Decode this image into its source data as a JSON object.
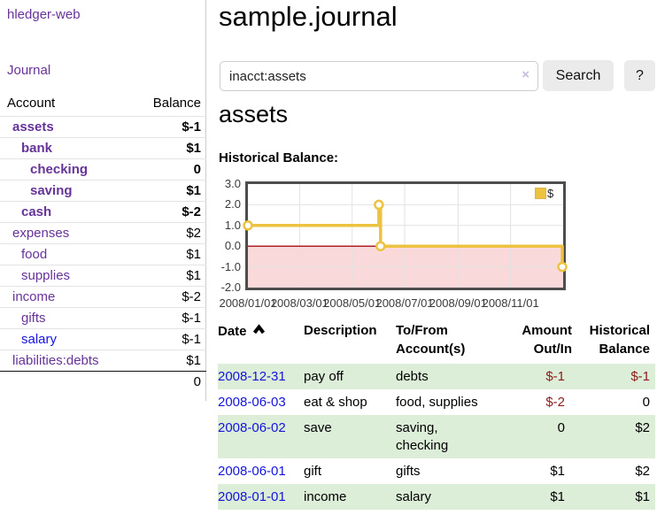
{
  "colors": {
    "purple": "#663399",
    "blue": "#1414dd",
    "darkred": "#8e1a1a",
    "rose": "#c98c8c",
    "green": "#dcedd8",
    "gold": "#edc240",
    "lavender": "#c7bcdc"
  },
  "sidebar": {
    "brand": "hledger-web",
    "journal_link": "Journal",
    "headers": {
      "account": "Account",
      "balance": "Balance"
    },
    "rows": [
      {
        "name": "assets",
        "depth": 1,
        "bold": true,
        "link": "purple",
        "balance": "$-1",
        "bal_class": "neg"
      },
      {
        "name": "bank",
        "depth": 2,
        "bold": true,
        "link": "purple",
        "balance": "$1",
        "bal_class": ""
      },
      {
        "name": "checking",
        "depth": 3,
        "bold": true,
        "link": "purple",
        "balance": "0",
        "bal_class": ""
      },
      {
        "name": "saving",
        "depth": 3,
        "bold": true,
        "link": "purple",
        "balance": "$1",
        "bal_class": ""
      },
      {
        "name": "cash",
        "depth": 2,
        "bold": true,
        "link": "purple",
        "balance": "$-2",
        "bal_class": "neg"
      },
      {
        "name": "expenses",
        "depth": 1,
        "bold": false,
        "link": "purple",
        "balance": "$2",
        "bal_class": ""
      },
      {
        "name": "food",
        "depth": 2,
        "bold": false,
        "link": "purple",
        "balance": "$1",
        "bal_class": ""
      },
      {
        "name": "supplies",
        "depth": 2,
        "bold": false,
        "link": "purple",
        "balance": "$1",
        "bal_class": ""
      },
      {
        "name": "income",
        "depth": 1,
        "bold": false,
        "link": "purple",
        "balance": "$-2",
        "bal_class": "soft"
      },
      {
        "name": "gifts",
        "depth": 2,
        "bold": false,
        "link": "purple",
        "balance": "$-1",
        "bal_class": "soft"
      },
      {
        "name": "salary",
        "depth": 2,
        "bold": false,
        "link": "blue",
        "balance": "$-1",
        "bal_class": "soft"
      },
      {
        "name": "liabilities:debts",
        "depth": 1,
        "bold": false,
        "link": "purple",
        "balance": "$1",
        "bal_class": ""
      }
    ],
    "total": "0"
  },
  "header": {
    "title": "sample.journal"
  },
  "search": {
    "value": "inacct:assets",
    "clear_icon": "×",
    "button_label": "Search",
    "help_label": "?"
  },
  "account_page": {
    "title": "assets",
    "chart_label": "Historical Balance:"
  },
  "chart_data": {
    "type": "line",
    "step": true,
    "title": "Historical Balance:",
    "legend": "$",
    "legend_position": "top-right",
    "grid": true,
    "ylim": [
      -2,
      3
    ],
    "x_range": [
      "2008-01-01",
      "2009-01-01"
    ],
    "series": [
      {
        "name": "$",
        "color": "#edc240",
        "points": [
          [
            "2008-01-01",
            1
          ],
          [
            "2008-06-01",
            2
          ],
          [
            "2008-06-03",
            0
          ],
          [
            "2008-12-31",
            -1
          ]
        ]
      }
    ],
    "y_ticks": [
      {
        "v": 3,
        "label": "3.0"
      },
      {
        "v": 2,
        "label": "2.0"
      },
      {
        "v": 1,
        "label": "1.0"
      },
      {
        "v": 0,
        "label": "0.0"
      },
      {
        "v": -1,
        "label": "-1.0"
      },
      {
        "v": -2,
        "label": "-2.0"
      }
    ],
    "x_ticks": [
      {
        "t": "2008-01-01",
        "label": "2008/01/01"
      },
      {
        "t": "2008-03-01",
        "label": "2008/03/01"
      },
      {
        "t": "2008-05-01",
        "label": "2008/05/01"
      },
      {
        "t": "2008-07-01",
        "label": "2008/07/01"
      },
      {
        "t": "2008-09-01",
        "label": "2008/09/01"
      },
      {
        "t": "2008-11-01",
        "label": "2008/11/01"
      }
    ],
    "negative_region_fill": "#f9d9d9",
    "zero_line_color": "#aa2222",
    "grid_color": "#e2e2e2"
  },
  "register": {
    "headers": {
      "date": "Date",
      "description": "Description",
      "accounts": "To/From\nAccount(s)",
      "amount": "Amount\nOut/In",
      "balance": "Historical\nBalance"
    },
    "rows": [
      {
        "date": "2008-12-31",
        "description": "pay off",
        "accounts": "debts",
        "amount": "$-1",
        "amount_neg": true,
        "balance": "$-1",
        "balance_neg": true,
        "shade": true
      },
      {
        "date": "2008-06-03",
        "description": "eat & shop",
        "accounts": "food, supplies",
        "amount": "$-2",
        "amount_neg": true,
        "balance": "0",
        "balance_neg": false,
        "shade": false
      },
      {
        "date": "2008-06-02",
        "description": "save",
        "accounts": "saving,\nchecking",
        "amount": "0",
        "amount_neg": false,
        "balance": "$2",
        "balance_neg": false,
        "shade": true
      },
      {
        "date": "2008-06-01",
        "description": "gift",
        "accounts": "gifts",
        "amount": "$1",
        "amount_neg": false,
        "balance": "$2",
        "balance_neg": false,
        "shade": false
      },
      {
        "date": "2008-01-01",
        "description": "income",
        "accounts": "salary",
        "amount": "$1",
        "amount_neg": false,
        "balance": "$1",
        "balance_neg": false,
        "shade": true
      }
    ]
  }
}
